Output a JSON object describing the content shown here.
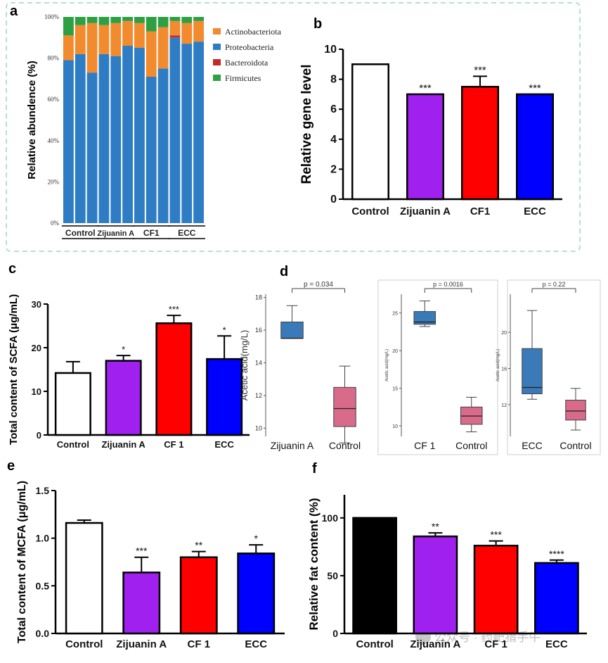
{
  "figure": {
    "panel_a": "a",
    "panel_b": "b",
    "panel_c": "c",
    "panel_d": "d",
    "panel_e": "e",
    "panel_f": "f",
    "watermark": "公众号 · 药靶猎手牛"
  },
  "chart_data": [
    {
      "id": "a",
      "type": "bar",
      "stacked": true,
      "ylabel": "Relative abundence (%)",
      "ylim": [
        0,
        100
      ],
      "yticks": [
        "0%",
        "20%",
        "40%",
        "60%",
        "80%",
        "100%"
      ],
      "groups": [
        "Control",
        "Zijuanin A",
        "CF1",
        "ECC"
      ],
      "series": [
        {
          "name": "Proteobacteria",
          "color": "#2e7dc4",
          "values": [
            79,
            82,
            73,
            82,
            81,
            86,
            85,
            71,
            75,
            90,
            87,
            88
          ]
        },
        {
          "name": "Actinobacteriota",
          "color": "#f28a2e",
          "values": [
            12,
            14,
            24,
            14,
            16,
            12,
            12,
            22,
            20,
            7,
            10,
            10
          ]
        },
        {
          "name": "Bacteroidota",
          "color": "#c62828",
          "values": [
            0,
            0,
            0,
            0,
            0,
            0,
            0,
            0,
            0,
            1,
            0,
            0
          ]
        },
        {
          "name": "Firmicutes",
          "color": "#2ea043",
          "values": [
            9,
            4,
            3,
            4,
            3,
            2,
            3,
            7,
            5,
            2,
            3,
            2
          ]
        }
      ],
      "legend": [
        "Actinobacteriota",
        "Proteobacteria",
        "Bacteroidota",
        "Firmicutes"
      ]
    },
    {
      "id": "b",
      "type": "bar",
      "ylabel": "Relative gene level",
      "ylim": [
        0,
        10
      ],
      "yticks": [
        "0",
        "2",
        "4",
        "6",
        "8",
        "10"
      ],
      "categories": [
        "Control",
        "Zijuanin A",
        "CF1",
        "ECC"
      ],
      "values": [
        9,
        7,
        7.5,
        7
      ],
      "errors": [
        0,
        0,
        0.7,
        0
      ],
      "sig": [
        "",
        "***",
        "***",
        "***"
      ],
      "colors": [
        "#ffffff",
        "#a020f0",
        "#ff0000",
        "#0000ff"
      ]
    },
    {
      "id": "c",
      "type": "bar",
      "ylabel": "Total content of SCFA (μg/mL)",
      "ylim": [
        0,
        30
      ],
      "yticks": [
        "0",
        "10",
        "20",
        "30"
      ],
      "categories": [
        "Control",
        "Zijuanin  A",
        "CF 1",
        "ECC"
      ],
      "values": [
        14.2,
        17,
        25.6,
        17.4
      ],
      "errors": [
        2.6,
        1.2,
        1.8,
        5.3
      ],
      "sig": [
        "",
        "*",
        "***",
        "*"
      ],
      "colors": [
        "#ffffff",
        "#a020f0",
        "#ff0000",
        "#0000ff"
      ]
    },
    {
      "id": "d1",
      "type": "box",
      "ylabel": "Acetic acid(mg/L)",
      "ylim": [
        9.5,
        18.2
      ],
      "yticks": [
        "10",
        "12",
        "14",
        "16",
        "18"
      ],
      "p_label": "p = 0.034",
      "categories": [
        "Zijuanin  A",
        "Control"
      ],
      "boxes": [
        {
          "min": 15.5,
          "q1": 15.5,
          "median": 15.5,
          "q3": 16.5,
          "max": 17.5,
          "color": "#3a7ab8"
        },
        {
          "min": 9.1,
          "q1": 10.1,
          "median": 11.2,
          "q3": 12.5,
          "max": 13.8,
          "color": "#d86a8a"
        }
      ]
    },
    {
      "id": "d2",
      "type": "box",
      "ylabel": "Acetic acid(mg/L)",
      "ylim": [
        8.6,
        27.5
      ],
      "yticks": [
        "10",
        "15",
        "20",
        "25"
      ],
      "p_label": "p = 0.0016",
      "categories": [
        "CF 1",
        "Control"
      ],
      "boxes": [
        {
          "min": 23.2,
          "q1": 23.5,
          "median": 23.8,
          "q3": 25.2,
          "max": 26.6,
          "color": "#3a7ab8"
        },
        {
          "min": 9.2,
          "q1": 10.2,
          "median": 11.3,
          "q3": 12.5,
          "max": 13.8,
          "color": "#d86a8a"
        }
      ]
    },
    {
      "id": "d3",
      "type": "box",
      "ylabel": "Acetic acid(mg/L)",
      "ylim": [
        8.5,
        24.2
      ],
      "yticks": [
        "12",
        "16",
        "20"
      ],
      "p_label": "p = 0.22",
      "categories": [
        "ECC",
        "Control"
      ],
      "boxes": [
        {
          "min": 12.6,
          "q1": 13.2,
          "median": 13.9,
          "q3": 18.2,
          "max": 22.4,
          "color": "#3a7ab8"
        },
        {
          "min": 9.2,
          "q1": 10.3,
          "median": 11.3,
          "q3": 12.5,
          "max": 13.8,
          "color": "#d86a8a"
        }
      ]
    },
    {
      "id": "e",
      "type": "bar",
      "ylabel": "Total content of MCFA (μg/mL)",
      "ylim": [
        0,
        1.5
      ],
      "yticks": [
        "0.0",
        "0.5",
        "1.0",
        "1.5"
      ],
      "categories": [
        "Control",
        "Zijuanin  A",
        "CF 1",
        "ECC"
      ],
      "values": [
        1.16,
        0.64,
        0.8,
        0.84
      ],
      "errors": [
        0.03,
        0.16,
        0.06,
        0.09
      ],
      "sig": [
        "",
        "***",
        "**",
        "*"
      ],
      "colors": [
        "#ffffff",
        "#a020f0",
        "#ff0000",
        "#0000ff"
      ]
    },
    {
      "id": "f",
      "type": "bar",
      "ylabel": "Relative fat content (%)",
      "ylim": [
        0,
        120
      ],
      "yticks": [
        "0",
        "50",
        "100"
      ],
      "categories": [
        "Control",
        "Zijuanin  A",
        "CF 1",
        "ECC"
      ],
      "values": [
        100,
        84,
        76,
        61
      ],
      "errors": [
        0,
        3,
        4,
        2.5
      ],
      "sig": [
        "",
        "**",
        "***",
        "****"
      ],
      "colors": [
        "#000000",
        "#a020f0",
        "#ff0000",
        "#0000ff"
      ]
    }
  ]
}
